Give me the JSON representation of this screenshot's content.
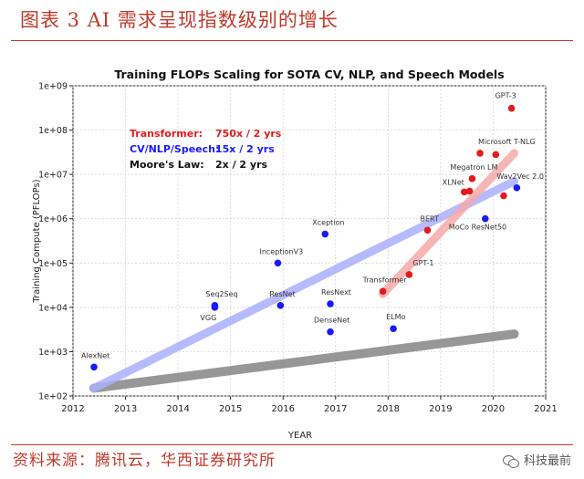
{
  "caption": "图表 3 AI 需求呈现指数级别的增长",
  "source": "资料来源：腾讯云，华西证券研究所",
  "watermark": "科技最前",
  "colors": {
    "accent": "#c0392b",
    "transformer": "#e41a1c",
    "cv": "#1a1aff",
    "cv_band": "#aab0ff",
    "transformer_band": "#f5aaaa",
    "moore": "#8c8c8c"
  },
  "chart_data": {
    "type": "scatter",
    "title": "Training FLOPs Scaling for SOTA CV, NLP, and Speech Models",
    "xlabel": "YEAR",
    "ylabel": "Training Compute (PFLOPs)",
    "x_ticks": [
      "2012",
      "2013",
      "2014",
      "2015",
      "2016",
      "2017",
      "2018",
      "2019",
      "2020",
      "2021"
    ],
    "y_ticks": [
      "1e+02",
      "1e+03",
      "1e+04",
      "1e+05",
      "1e+06",
      "1e+07",
      "1e+08",
      "1e+09"
    ],
    "xlim": [
      2012,
      2021
    ],
    "ylim": [
      100,
      1000000000
    ],
    "yscale": "log",
    "legend": [
      {
        "name": "Transformer:",
        "rate": "750x / 2 yrs",
        "color": "#e41a1c"
      },
      {
        "name": "CV/NLP/Speech:",
        "rate": "15x / 2 yrs",
        "color": "#1a1aff"
      },
      {
        "name": "Moore's Law:",
        "rate": "2x / 2 yrs",
        "color": "#111111"
      }
    ],
    "trends": [
      {
        "series": "Transformer",
        "x": [
          2017.9,
          2020.4
        ],
        "y": [
          20000,
          30000000
        ]
      },
      {
        "series": "CV/NLP/Speech",
        "x": [
          2012.4,
          2020.4
        ],
        "y": [
          150,
          7000000
        ]
      },
      {
        "series": "Moore's Law",
        "x": [
          2012.4,
          2020.4
        ],
        "y": [
          150,
          2500
        ]
      }
    ],
    "points": [
      {
        "label": "AlexNet",
        "x": 2012.4,
        "y": 450,
        "series": "CV/NLP/Speech"
      },
      {
        "label": "Seq2Seq",
        "x": 2014.7,
        "y": 11000,
        "series": "CV/NLP/Speech"
      },
      {
        "label": "VGG",
        "x": 2014.7,
        "y": 10000,
        "series": "CV/NLP/Speech"
      },
      {
        "label": "InceptionV3",
        "x": 2015.9,
        "y": 100000,
        "series": "CV/NLP/Speech"
      },
      {
        "label": "ResNet",
        "x": 2015.95,
        "y": 11000,
        "series": "CV/NLP/Speech"
      },
      {
        "label": "Xception",
        "x": 2016.8,
        "y": 450000,
        "series": "CV/NLP/Speech"
      },
      {
        "label": "ResNext",
        "x": 2016.9,
        "y": 12000,
        "series": "CV/NLP/Speech"
      },
      {
        "label": "DenseNet",
        "x": 2016.9,
        "y": 2800,
        "series": "CV/NLP/Speech"
      },
      {
        "label": "ELMo",
        "x": 2018.1,
        "y": 3300,
        "series": "CV/NLP/Speech"
      },
      {
        "label": "Transformer",
        "x": 2017.9,
        "y": 23000,
        "series": "Transformer"
      },
      {
        "label": "GPT-1",
        "x": 2018.4,
        "y": 55000,
        "series": "Transformer"
      },
      {
        "label": "BERT",
        "x": 2018.75,
        "y": 550000,
        "series": "Transformer"
      },
      {
        "label": "XLNet",
        "x": 2019.45,
        "y": 4000000,
        "series": "Transformer"
      },
      {
        "label": "",
        "x": 2019.55,
        "y": 4200000,
        "series": "Transformer"
      },
      {
        "label": "Megatron LM",
        "x": 2019.6,
        "y": 8000000,
        "series": "Transformer"
      },
      {
        "label": "Microsoft T-NLG",
        "x": 2019.75,
        "y": 30000000,
        "series": "Transformer"
      },
      {
        "label": "",
        "x": 2020.05,
        "y": 28000000,
        "series": "Transformer"
      },
      {
        "label": "",
        "x": 2020.2,
        "y": 3300000,
        "series": "Transformer"
      },
      {
        "label": "GPT-3",
        "x": 2020.35,
        "y": 310000000,
        "series": "Transformer"
      },
      {
        "label": "MoCo ResNet50",
        "x": 2019.85,
        "y": 1000000,
        "series": "CV/NLP/Speech"
      },
      {
        "label": "Wav2Vec 2.0",
        "x": 2020.45,
        "y": 5000000,
        "series": "CV/NLP/Speech"
      }
    ]
  }
}
